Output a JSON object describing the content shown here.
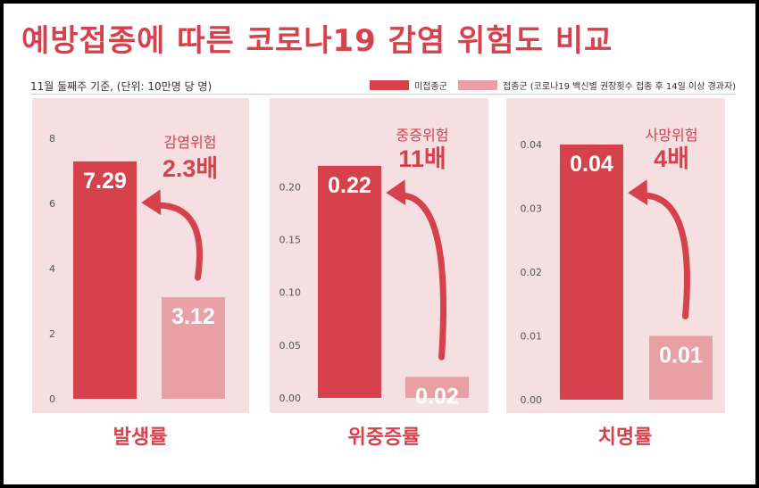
{
  "title": "예방접종에 따른 코로나19 감염 위험도 비교",
  "basis": "11월 둘째주 기준, (단위: 10만명 당 명)",
  "legend": [
    {
      "label": "미접종군",
      "color": "#d6424c"
    },
    {
      "label": "접종군 (코로나19 백신별 권장횟수 접종 후 14일 이상 경과자)",
      "color": "#e8a0a4"
    }
  ],
  "colors": {
    "unvaccinated": "#d6424c",
    "vaccinated": "#e8a0a4",
    "panel": "#f5dfe0",
    "accent": "#d6424c"
  },
  "chart_data": [
    {
      "type": "bar",
      "title": "발생률",
      "categories": [
        "미접종군",
        "접종군"
      ],
      "values": [
        7.29,
        3.12
      ],
      "value_labels": [
        "7.29",
        "3.12"
      ],
      "ylim": [
        0,
        8
      ],
      "yticks": [
        0,
        2,
        4,
        6,
        8
      ],
      "ytick_labels": [
        "0",
        "2",
        "4",
        "6",
        "8"
      ],
      "annotation": {
        "line1": "감염위험",
        "line2": "2.3배"
      }
    },
    {
      "type": "bar",
      "title": "위중증률",
      "categories": [
        "미접종군",
        "접종군"
      ],
      "values": [
        0.22,
        0.02
      ],
      "value_labels": [
        "0.22",
        "0.02"
      ],
      "ylim": [
        0,
        0.23
      ],
      "yticks": [
        0,
        0.05,
        0.1,
        0.15,
        0.2
      ],
      "ytick_labels": [
        "0.00",
        "0.05",
        "0.10",
        "0.15",
        "0.20"
      ],
      "annotation": {
        "line1": "중증위험",
        "line2": "11배"
      }
    },
    {
      "type": "bar",
      "title": "치명률",
      "categories": [
        "미접종군",
        "접종군"
      ],
      "values": [
        0.04,
        0.01
      ],
      "value_labels": [
        "0.04",
        "0.01"
      ],
      "ylim": [
        0,
        0.04
      ],
      "yticks": [
        0,
        0.01,
        0.02,
        0.03,
        0.04
      ],
      "ytick_labels": [
        "0.00",
        "0.01",
        "0.02",
        "0.03",
        "0.04"
      ],
      "annotation": {
        "line1": "사망위험",
        "line2": "4배"
      }
    }
  ]
}
